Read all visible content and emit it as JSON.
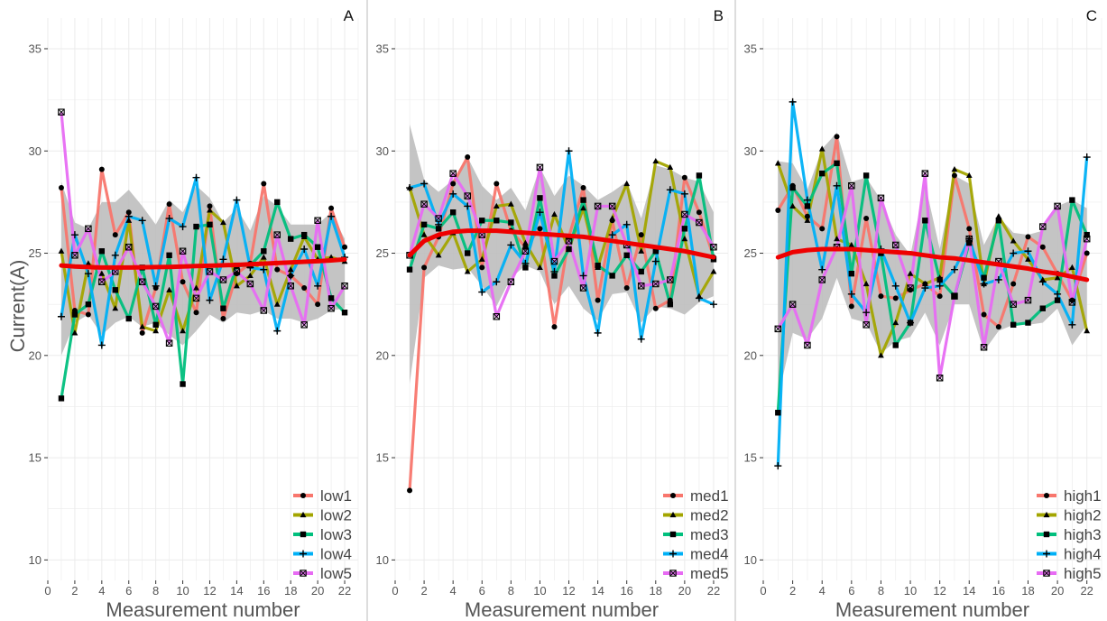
{
  "ylabel": "Current(A)",
  "colors": {
    "series": [
      "#F8766D",
      "#A3A500",
      "#00BF7D",
      "#00B0F6",
      "#E76BF3"
    ],
    "trend": "#EE0000",
    "ribbon": "#BEBEBE",
    "grid": "#EBEBEB"
  },
  "marker_shapes": [
    "circle",
    "triangle",
    "square",
    "plus",
    "square-cross"
  ],
  "chart_data": [
    {
      "type": "line",
      "panel_label": "A",
      "xlabel": "Measurement number",
      "xlim": [
        0,
        23
      ],
      "ylim": [
        9,
        36.5
      ],
      "xticks": [
        0,
        2,
        4,
        6,
        8,
        10,
        12,
        14,
        16,
        18,
        20,
        22
      ],
      "yticks": [
        10,
        15,
        20,
        25,
        30,
        35
      ],
      "grid": true,
      "legend_position": "bottom-right",
      "x": [
        1,
        2,
        3,
        4,
        5,
        6,
        7,
        8,
        9,
        10,
        11,
        12,
        13,
        14,
        15,
        16,
        17,
        18,
        19,
        20,
        21,
        22
      ],
      "series": [
        {
          "name": "low1",
          "values": [
            28.2,
            22.2,
            22.0,
            29.1,
            25.9,
            27.0,
            21.1,
            23.3,
            27.4,
            23.6,
            22.1,
            27.3,
            21.8,
            24.0,
            24.5,
            28.4,
            24.2,
            23.9,
            23.3,
            22.5,
            27.2,
            25.3
          ]
        },
        {
          "name": "low2",
          "values": [
            25.1,
            21.1,
            24.5,
            24.0,
            22.3,
            26.6,
            21.4,
            21.2,
            23.2,
            21.2,
            23.3,
            27.1,
            26.5,
            23.4,
            23.9,
            24.8,
            22.5,
            24.2,
            25.8,
            24.7,
            24.8,
            24.6
          ]
        },
        {
          "name": "low3",
          "values": [
            17.9,
            22.0,
            22.5,
            25.1,
            23.2,
            21.8,
            24.3,
            21.5,
            24.9,
            18.6,
            26.3,
            26.4,
            22.3,
            24.4,
            24.4,
            25.1,
            27.5,
            25.7,
            25.9,
            25.3,
            22.8,
            22.1
          ]
        },
        {
          "name": "low4",
          "values": [
            21.9,
            25.9,
            24.0,
            20.5,
            24.9,
            26.8,
            26.6,
            23.4,
            26.7,
            26.3,
            28.7,
            22.7,
            24.7,
            27.6,
            24.3,
            24.2,
            21.2,
            23.9,
            25.2,
            23.4,
            26.8,
            24.8
          ]
        },
        {
          "name": "low5",
          "values": [
            31.9,
            24.9,
            26.2,
            23.6,
            24.1,
            25.3,
            23.6,
            22.4,
            20.6,
            25.1,
            22.8,
            24.1,
            23.7,
            24.1,
            23.5,
            22.2,
            25.9,
            23.4,
            21.5,
            26.6,
            22.3,
            23.4
          ]
        }
      ],
      "trend": {
        "values": [
          24.4,
          24.35,
          24.32,
          24.3,
          24.3,
          24.3,
          24.31,
          24.32,
          24.33,
          24.35,
          24.37,
          24.39,
          24.41,
          24.43,
          24.46,
          24.49,
          24.52,
          24.55,
          24.58,
          24.61,
          24.65,
          24.7
        ]
      },
      "band": {
        "upper": [
          28.5,
          26.5,
          26.2,
          27.5,
          27.5,
          28.1,
          27.3,
          26.4,
          27.6,
          27.0,
          28.3,
          27.7,
          26.5,
          27.2,
          26.1,
          27.8,
          27.3,
          26.4,
          26.4,
          26.4,
          27.0,
          25.7
        ],
        "lower": [
          20.0,
          21.6,
          22.0,
          21.0,
          21.6,
          21.9,
          21.4,
          21.6,
          21.0,
          20.5,
          21.2,
          22.0,
          21.6,
          22.1,
          22.0,
          22.2,
          21.8,
          21.8,
          21.6,
          21.8,
          22.2,
          22.3
        ]
      }
    },
    {
      "type": "line",
      "panel_label": "B",
      "xlabel": "Measurement number",
      "xlim": [
        0,
        23
      ],
      "ylim": [
        9,
        36.5
      ],
      "xticks": [
        0,
        2,
        4,
        6,
        8,
        10,
        12,
        14,
        16,
        18,
        20,
        22
      ],
      "yticks": [
        10,
        15,
        20,
        25,
        30,
        35
      ],
      "grid": true,
      "legend_position": "bottom-right",
      "x": [
        1,
        2,
        3,
        4,
        5,
        6,
        7,
        8,
        9,
        10,
        11,
        12,
        13,
        14,
        15,
        16,
        17,
        18,
        19,
        20,
        21,
        22
      ],
      "series": [
        {
          "name": "med1",
          "values": [
            13.4,
            24.3,
            25.8,
            28.4,
            29.7,
            24.3,
            28.4,
            26.1,
            25.3,
            26.2,
            21.4,
            25.8,
            28.2,
            22.7,
            26.6,
            23.3,
            25.9,
            22.3,
            22.7,
            28.7,
            27.0,
            24.8
          ]
        },
        {
          "name": "med2",
          "values": [
            28.2,
            25.9,
            24.9,
            26.0,
            24.1,
            24.7,
            27.3,
            27.4,
            25.5,
            24.3,
            26.9,
            25.2,
            27.2,
            24.3,
            26.7,
            28.4,
            25.1,
            29.5,
            29.2,
            25.7,
            22.9,
            24.1
          ]
        },
        {
          "name": "med3",
          "values": [
            24.2,
            26.4,
            26.2,
            27.0,
            25.0,
            26.6,
            26.6,
            26.5,
            24.3,
            27.7,
            23.9,
            25.2,
            27.6,
            24.4,
            23.9,
            24.9,
            24.1,
            25.1,
            22.5,
            26.2,
            28.8,
            24.7
          ]
        },
        {
          "name": "med4",
          "values": [
            28.2,
            28.4,
            26.4,
            27.9,
            27.3,
            23.1,
            23.6,
            25.4,
            24.5,
            27.0,
            24.1,
            30.0,
            23.9,
            21.1,
            25.9,
            26.4,
            20.8,
            24.6,
            28.1,
            27.9,
            22.8,
            22.5
          ]
        },
        {
          "name": "med5",
          "values": [
            24.9,
            27.4,
            26.7,
            28.9,
            27.8,
            25.9,
            21.9,
            23.6,
            25.1,
            29.2,
            24.6,
            25.6,
            23.3,
            27.3,
            27.3,
            25.4,
            23.4,
            23.5,
            23.7,
            26.9,
            26.5,
            25.3
          ]
        }
      ],
      "trend": {
        "values": [
          24.9,
          25.6,
          25.9,
          26.05,
          26.1,
          26.1,
          26.1,
          26.05,
          26.0,
          25.95,
          25.9,
          25.85,
          25.8,
          25.7,
          25.6,
          25.5,
          25.4,
          25.3,
          25.2,
          25.1,
          24.95,
          24.8
        ]
      },
      "band": {
        "upper": [
          31.3,
          28.6,
          28.0,
          28.6,
          29.7,
          28.3,
          27.6,
          28.2,
          27.1,
          29.2,
          27.8,
          28.8,
          28.3,
          27.6,
          28.0,
          28.5,
          26.7,
          29.3,
          29.1,
          28.7,
          28.5,
          27.0
        ]
      },
      "band_lower": [
        18.6,
        23.8,
        24.4,
        24.2,
        24.3,
        23.4,
        22.4,
        23.8,
        24.4,
        24.1,
        22.5,
        23.4,
        22.3,
        21.7,
        23.0,
        23.1,
        21.6,
        22.4,
        22.3,
        22.0,
        22.6,
        22.9
      ]
    },
    {
      "type": "line",
      "panel_label": "C",
      "xlabel": "Measurement number",
      "xlim": [
        0,
        23
      ],
      "ylim": [
        9,
        36.5
      ],
      "xticks": [
        0,
        2,
        4,
        6,
        8,
        10,
        12,
        14,
        16,
        18,
        20,
        22
      ],
      "yticks": [
        10,
        15,
        20,
        25,
        30,
        35
      ],
      "grid": true,
      "legend_position": "bottom-right",
      "x": [
        1,
        2,
        3,
        4,
        5,
        6,
        7,
        8,
        9,
        10,
        11,
        12,
        13,
        14,
        15,
        16,
        17,
        18,
        19,
        20,
        21,
        22
      ],
      "series": [
        {
          "name": "high1",
          "values": [
            27.1,
            28.3,
            26.8,
            26.2,
            30.7,
            22.4,
            26.7,
            22.9,
            22.8,
            23.2,
            23.5,
            22.9,
            28.8,
            26.2,
            22.0,
            21.4,
            23.5,
            25.8,
            25.3,
            24.0,
            22.7,
            25.0
          ]
        },
        {
          "name": "high2",
          "values": [
            29.4,
            27.3,
            26.6,
            30.1,
            25.7,
            25.4,
            23.5,
            20.0,
            21.6,
            24.0,
            23.5,
            23.8,
            29.1,
            28.8,
            23.5,
            26.8,
            25.6,
            24.7,
            23.7,
            23.8,
            24.3,
            21.2
          ]
        },
        {
          "name": "high3",
          "values": [
            17.2,
            28.2,
            27.3,
            28.9,
            29.4,
            24.0,
            28.8,
            25.0,
            20.5,
            21.6,
            26.6,
            23.7,
            22.9,
            25.5,
            23.8,
            26.6,
            21.5,
            21.6,
            22.3,
            22.7,
            27.6,
            25.9
          ]
        },
        {
          "name": "high4",
          "values": [
            14.6,
            32.4,
            27.6,
            24.2,
            28.3,
            23.0,
            22.1,
            25.2,
            23.4,
            21.6,
            23.3,
            23.4,
            24.2,
            25.7,
            23.5,
            23.7,
            25.0,
            25.1,
            23.6,
            23.0,
            21.5,
            29.7
          ]
        },
        {
          "name": "high5",
          "values": [
            21.3,
            22.5,
            20.5,
            23.7,
            25.3,
            28.3,
            21.5,
            27.7,
            25.4,
            23.3,
            28.9,
            18.9,
            22.9,
            25.7,
            20.4,
            24.6,
            22.5,
            22.7,
            26.3,
            27.3,
            22.6,
            25.7
          ]
        }
      ],
      "trend": {
        "values": [
          24.8,
          25.05,
          25.15,
          25.2,
          25.2,
          25.2,
          25.15,
          25.1,
          25.05,
          25.0,
          24.9,
          24.8,
          24.75,
          24.65,
          24.55,
          24.45,
          24.35,
          24.25,
          24.1,
          24.0,
          23.85,
          23.7
        ]
      },
      "band": {
        "upper": [
          29.5,
          29.4,
          28.1,
          30.1,
          30.9,
          28.5,
          28.7,
          27.6,
          25.9,
          24.9,
          28.4,
          25.2,
          28.8,
          28.4,
          25.4,
          26.8,
          26.0,
          25.9,
          26.1,
          27.3,
          27.6,
          27.2
        ]
      },
      "band_lower": [
        17.9,
        21.1,
        20.8,
        21.8,
        23.8,
        21.8,
        21.6,
        20.1,
        20.7,
        20.9,
        22.1,
        20.5,
        22.5,
        22.5,
        20.2,
        21.2,
        21.5,
        21.5,
        21.6,
        22.3,
        20.5,
        21.5
      ]
    }
  ]
}
